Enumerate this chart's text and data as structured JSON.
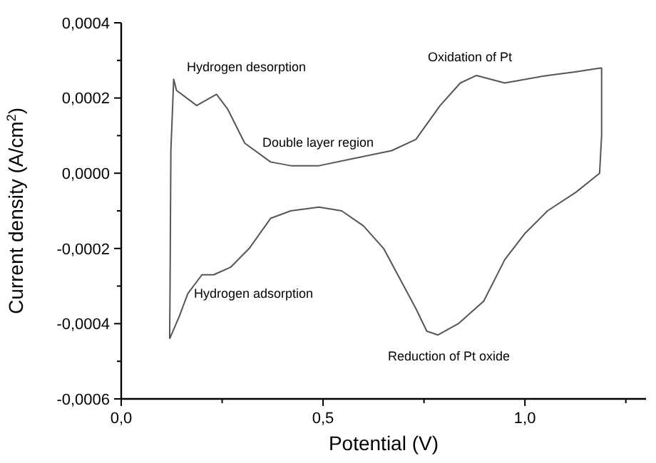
{
  "chart_data": {
    "type": "line",
    "xlabel": "Potential (V)",
    "ylabel": "Current density (A/cm$^{2}$)",
    "xlim": [
      0,
      1.3
    ],
    "ylim": [
      -0.0006,
      0.0004
    ],
    "xticks": [
      {
        "value": 0,
        "label": "0,0"
      },
      {
        "value": 0.25,
        "label": null
      },
      {
        "value": 0.5,
        "label": "0,5"
      },
      {
        "value": 0.75,
        "label": null
      },
      {
        "value": 1,
        "label": "1,0"
      },
      {
        "value": 1.25,
        "label": null
      }
    ],
    "yticks": [
      {
        "value": -0.0006,
        "label": "-0,0006"
      },
      {
        "value": -0.0005,
        "label": null
      },
      {
        "value": -0.0004,
        "label": "-0,0004"
      },
      {
        "value": -0.0003,
        "label": null
      },
      {
        "value": -0.0002,
        "label": "-0,0002"
      },
      {
        "value": -0.0001,
        "label": null
      },
      {
        "value": 0,
        "label": "0,0000"
      },
      {
        "value": 0.0001,
        "label": null
      },
      {
        "value": 0.0002,
        "label": "0,0002"
      },
      {
        "value": 0.0003,
        "label": null
      },
      {
        "value": 0.0004,
        "label": "0,0004"
      }
    ],
    "grid": false,
    "marker": "none",
    "line_style": "solid",
    "series": [
      {
        "color": "#555555",
        "x": [
          0.12,
          0.121,
          0.123,
          0.13,
          0.137,
          0.187,
          0.236,
          0.264,
          0.306,
          0.37,
          0.42,
          0.49,
          0.58,
          0.67,
          0.73,
          0.79,
          0.84,
          0.88,
          0.95,
          1.056,
          1.127,
          1.19
        ],
        "values": [
          -0.00044,
          -0.0003,
          6e-05,
          0.00025,
          0.00022,
          0.00018,
          0.00021,
          0.00017,
          8e-05,
          3e-05,
          2e-05,
          2e-05,
          4e-05,
          6e-05,
          9e-05,
          0.00018,
          0.00024,
          0.00026,
          0.00024,
          0.00026,
          0.00027,
          0.00028
        ]
      },
      {
        "color": "#555555",
        "x": [
          0.12,
          0.144,
          0.165,
          0.2,
          0.229,
          0.271,
          0.317,
          0.37,
          0.42,
          0.49,
          0.546,
          0.6,
          0.65,
          0.73,
          0.757,
          0.785,
          0.835,
          0.898,
          0.95,
          1.0,
          1.056,
          1.127,
          1.185,
          1.19,
          1.19
        ],
        "values": [
          -0.00044,
          -0.00038,
          -0.00032,
          -0.00027,
          -0.00027,
          -0.00025,
          -0.0002,
          -0.00012,
          -0.0001,
          -9e-05,
          -0.0001,
          -0.00014,
          -0.0002,
          -0.00036,
          -0.00042,
          -0.00043,
          -0.0004,
          -0.00034,
          -0.00023,
          -0.00016,
          -0.0001,
          -5e-05,
          0,
          0.0001,
          0.00028
        ]
      }
    ],
    "annotations": [
      "Hydrogen desorption",
      "Double layer region",
      "Oxidation of Pt",
      "Hydrogen adsorption",
      "Reduction of Pt oxide"
    ]
  }
}
